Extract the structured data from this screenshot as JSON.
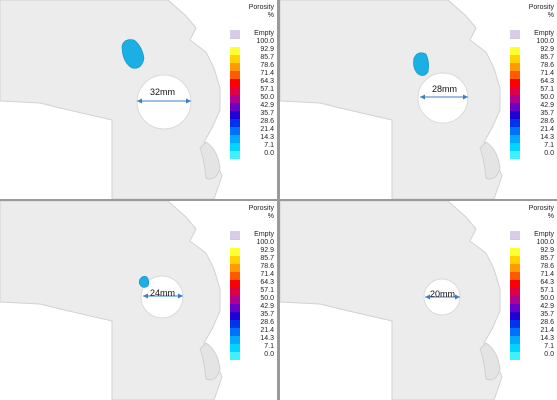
{
  "panels": [
    {
      "dimension_label": "32mm"
    },
    {
      "dimension_label": "28mm"
    },
    {
      "dimension_label": "24mm"
    },
    {
      "dimension_label": "20mm"
    }
  ],
  "legend": {
    "title_line1": "Porosity",
    "title_line2": "%",
    "entries": [
      {
        "label": "Empty",
        "color": "#d8cce8"
      },
      {
        "label": "100.0",
        "color": "#ffffff"
      },
      {
        "label": "92.9",
        "color": "#ffff33"
      },
      {
        "label": "85.7",
        "color": "#ffd200"
      },
      {
        "label": "78.6",
        "color": "#ff9a00"
      },
      {
        "label": "71.4",
        "color": "#ff5a00"
      },
      {
        "label": "64.3",
        "color": "#ff0000"
      },
      {
        "label": "57.1",
        "color": "#dd0045"
      },
      {
        "label": "50.0",
        "color": "#b00090"
      },
      {
        "label": "42.9",
        "color": "#6a00c8"
      },
      {
        "label": "35.7",
        "color": "#2000d8"
      },
      {
        "label": "28.6",
        "color": "#0033ee"
      },
      {
        "label": "21.4",
        "color": "#0070ff"
      },
      {
        "label": "14.3",
        "color": "#00aaff"
      },
      {
        "label": "7.1",
        "color": "#00d4ff"
      },
      {
        "label": "0.0",
        "color": "#40f0ff"
      }
    ]
  },
  "colors": {
    "part_fill": "#ececec",
    "part_stroke": "#d2d2d2",
    "porosity_blob": "#1ab0e6",
    "dimension_arrow": "#3a7fc4"
  }
}
